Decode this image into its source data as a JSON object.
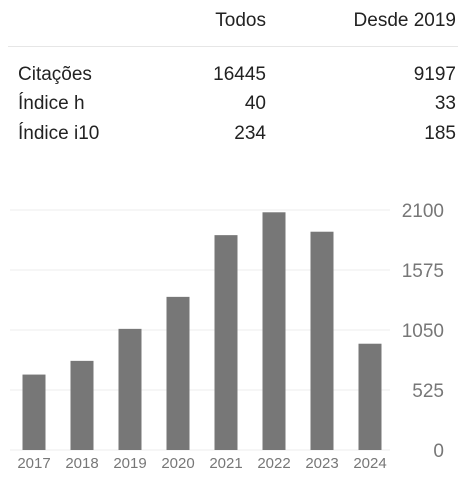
{
  "stats": {
    "columns": [
      "Todos",
      "Desde 2019"
    ],
    "rows": [
      {
        "label": "Citações",
        "all": "16445",
        "since": "9197"
      },
      {
        "label": "Índice h",
        "all": "40",
        "since": "33"
      },
      {
        "label": "Índice i10",
        "all": "234",
        "since": "185"
      }
    ]
  },
  "chart_data": {
    "type": "bar",
    "categories": [
      "2017",
      "2018",
      "2019",
      "2020",
      "2021",
      "2022",
      "2023",
      "2024"
    ],
    "values": [
      660,
      780,
      1060,
      1340,
      1880,
      2080,
      1910,
      930
    ],
    "yticks": [
      "0",
      "525",
      "1050",
      "1575",
      "2100"
    ],
    "ylim": [
      0,
      2100
    ],
    "bar_color": "#777777",
    "grid_color": "#eeeeee",
    "title": "",
    "xlabel": "",
    "ylabel": ""
  }
}
